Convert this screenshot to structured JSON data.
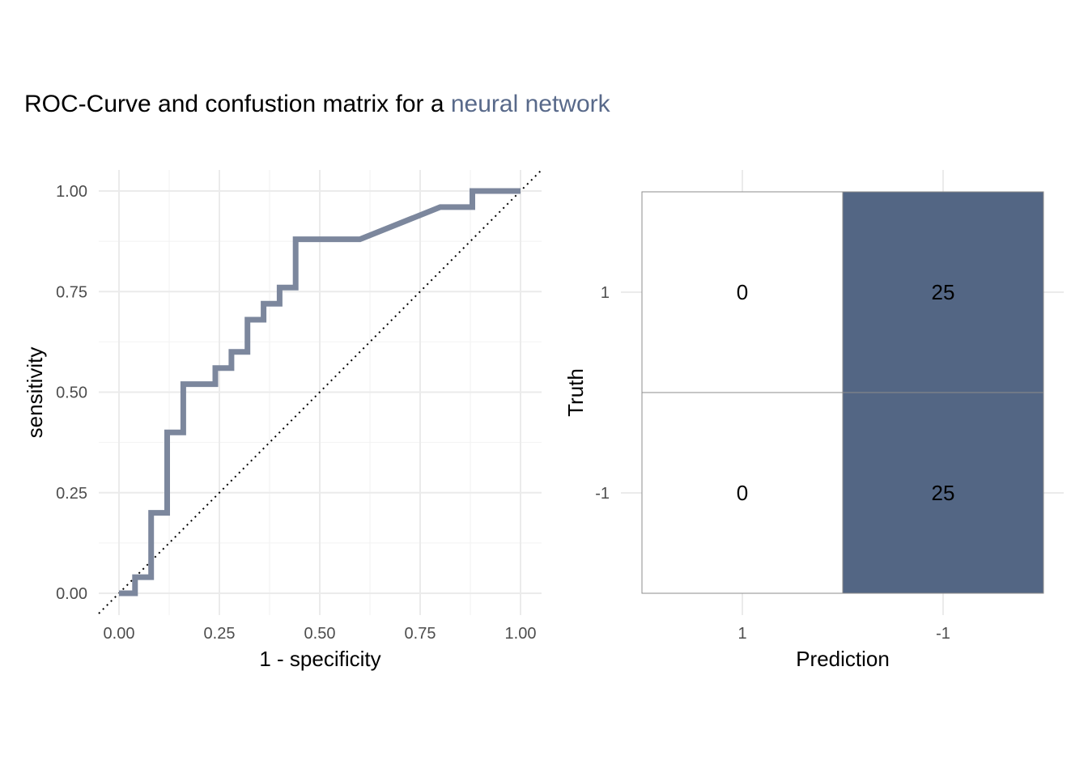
{
  "title": {
    "prefix": "ROC-Curve and confustion matrix for a ",
    "highlight": "neural network",
    "highlight_color": "#58698A"
  },
  "chart_data": [
    {
      "type": "line",
      "name": "roc-curve",
      "xlabel": "1 - specificity",
      "ylabel": "sensitivity",
      "xlim": [
        0,
        1
      ],
      "ylim": [
        0,
        1
      ],
      "x_ticks": [
        "0.00",
        "0.25",
        "0.50",
        "0.75",
        "1.00"
      ],
      "y_ticks": [
        "0.00",
        "0.25",
        "0.50",
        "0.75",
        "1.00"
      ],
      "grid": true,
      "line_color": "#7C879D",
      "reference_line": "diagonal dotted",
      "x": [
        0.0,
        0.04,
        0.04,
        0.08,
        0.08,
        0.12,
        0.12,
        0.16,
        0.16,
        0.24,
        0.24,
        0.28,
        0.28,
        0.32,
        0.32,
        0.36,
        0.36,
        0.4,
        0.4,
        0.44,
        0.44,
        0.6,
        0.8,
        0.88,
        0.88,
        1.0
      ],
      "y": [
        0.0,
        0.0,
        0.04,
        0.04,
        0.2,
        0.2,
        0.4,
        0.4,
        0.52,
        0.52,
        0.56,
        0.56,
        0.6,
        0.6,
        0.68,
        0.68,
        0.72,
        0.72,
        0.76,
        0.76,
        0.88,
        0.88,
        0.96,
        0.96,
        1.0,
        1.0
      ]
    },
    {
      "type": "heatmap",
      "name": "confusion-matrix",
      "xlabel": "Prediction",
      "ylabel": "Truth",
      "x_categories": [
        "1",
        "-1"
      ],
      "y_categories": [
        "1",
        "-1"
      ],
      "high_color": "#536684",
      "low_color": "#FFFFFF",
      "cells": [
        {
          "truth": "1",
          "prediction": "1",
          "value": 0
        },
        {
          "truth": "1",
          "prediction": "-1",
          "value": 25
        },
        {
          "truth": "-1",
          "prediction": "1",
          "value": 0
        },
        {
          "truth": "-1",
          "prediction": "-1",
          "value": 25
        }
      ]
    }
  ]
}
